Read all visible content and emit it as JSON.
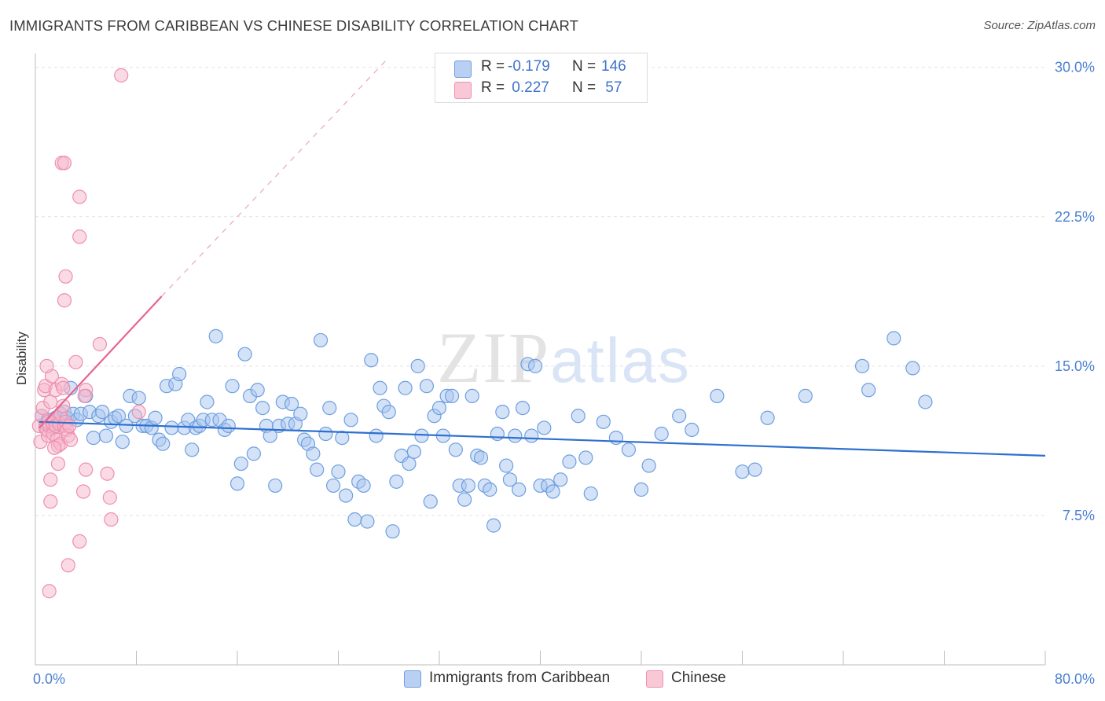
{
  "header": {
    "title": "IMMIGRANTS FROM CARIBBEAN VS CHINESE DISABILITY CORRELATION CHART",
    "source": "Source: ZipAtlas.com"
  },
  "watermark": {
    "zip": "ZIP",
    "atlas": "atlas"
  },
  "legend": {
    "rows": [
      {
        "r_label": "R = ",
        "r_value": "-0.179",
        "n_label": "N = ",
        "n_value": "146"
      },
      {
        "r_label": "R = ",
        "r_value": " 0.227",
        "n_label": "N = ",
        "n_value": " 57"
      }
    ]
  },
  "bottom_legend": {
    "series1": "Immigrants from Caribbean",
    "series2": "Chinese"
  },
  "colors": {
    "blue_fill": "#a9c6ef",
    "blue_stroke": "#6d9fe0",
    "blue_line": "#2e70cf",
    "pink_fill": "#f6b8cb",
    "pink_stroke": "#ee8fae",
    "pink_line": "#e8648d",
    "grid": "#e2e2e2",
    "tick_text": "#4a7fd0"
  },
  "chart_data": {
    "type": "scatter",
    "title": "IMMIGRANTS FROM CARIBBEAN VS CHINESE DISABILITY CORRELATION CHART",
    "xlabel": "",
    "ylabel": "Disability",
    "xlim": [
      0,
      80
    ],
    "ylim": [
      0,
      30.7
    ],
    "x_tick_labels": [
      "0.0%",
      "80.0%"
    ],
    "y_ticks": [
      7.5,
      15.0,
      22.5,
      30.0
    ],
    "y_tick_labels": [
      "7.5%",
      "15.0%",
      "22.5%",
      "30.0%"
    ],
    "grid": true,
    "legend_position": "top-center",
    "series": [
      {
        "name": "Immigrants from Caribbean",
        "R": -0.179,
        "N": 146,
        "trend": {
          "x0": 0.3,
          "y0": 12.2,
          "x1": 80,
          "y1": 10.5
        },
        "points": [
          [
            0.5,
            12.5
          ],
          [
            0.8,
            12.1
          ],
          [
            1.0,
            12.3
          ],
          [
            1.2,
            12.0
          ],
          [
            1.4,
            11.9
          ],
          [
            1.6,
            12.4
          ],
          [
            1.8,
            12.2
          ],
          [
            2.0,
            12.6
          ],
          [
            2.3,
            12.7
          ],
          [
            2.5,
            12.4
          ],
          [
            2.8,
            13.9
          ],
          [
            3.0,
            12.6
          ],
          [
            3.3,
            12.3
          ],
          [
            3.6,
            12.6
          ],
          [
            4.0,
            13.5
          ],
          [
            4.3,
            12.7
          ],
          [
            4.6,
            11.4
          ],
          [
            5.0,
            12.5
          ],
          [
            5.3,
            12.7
          ],
          [
            5.6,
            11.5
          ],
          [
            6.0,
            12.2
          ],
          [
            6.3,
            12.4
          ],
          [
            6.6,
            12.5
          ],
          [
            6.9,
            11.2
          ],
          [
            7.2,
            12.0
          ],
          [
            7.5,
            13.5
          ],
          [
            7.9,
            12.5
          ],
          [
            8.2,
            13.4
          ],
          [
            8.5,
            12.0
          ],
          [
            8.8,
            12.0
          ],
          [
            9.2,
            11.9
          ],
          [
            9.5,
            12.4
          ],
          [
            9.8,
            11.3
          ],
          [
            10.1,
            11.1
          ],
          [
            10.4,
            14.0
          ],
          [
            10.8,
            11.9
          ],
          [
            11.1,
            14.1
          ],
          [
            11.4,
            14.6
          ],
          [
            11.8,
            11.9
          ],
          [
            12.1,
            12.3
          ],
          [
            12.4,
            10.8
          ],
          [
            12.7,
            11.9
          ],
          [
            13.0,
            12.0
          ],
          [
            13.3,
            12.3
          ],
          [
            13.6,
            13.2
          ],
          [
            14.0,
            12.3
          ],
          [
            14.3,
            16.5
          ],
          [
            14.6,
            12.3
          ],
          [
            15.0,
            11.8
          ],
          [
            15.3,
            12.0
          ],
          [
            15.6,
            14.0
          ],
          [
            16.0,
            9.1
          ],
          [
            16.3,
            10.1
          ],
          [
            16.6,
            15.6
          ],
          [
            17.0,
            13.5
          ],
          [
            17.3,
            10.6
          ],
          [
            17.6,
            13.8
          ],
          [
            18.0,
            12.9
          ],
          [
            18.3,
            12.0
          ],
          [
            18.6,
            11.5
          ],
          [
            19.0,
            9.0
          ],
          [
            19.3,
            12.0
          ],
          [
            19.6,
            13.2
          ],
          [
            20.0,
            12.1
          ],
          [
            20.3,
            13.1
          ],
          [
            20.6,
            12.1
          ],
          [
            21.0,
            12.6
          ],
          [
            21.3,
            11.3
          ],
          [
            21.6,
            11.1
          ],
          [
            22.0,
            10.6
          ],
          [
            22.3,
            9.8
          ],
          [
            22.6,
            16.3
          ],
          [
            23.0,
            11.6
          ],
          [
            23.3,
            12.9
          ],
          [
            23.6,
            9.0
          ],
          [
            24.0,
            9.7
          ],
          [
            24.3,
            11.4
          ],
          [
            24.6,
            8.5
          ],
          [
            25.0,
            12.3
          ],
          [
            25.3,
            7.3
          ],
          [
            25.6,
            9.2
          ],
          [
            26.0,
            9.0
          ],
          [
            26.3,
            7.2
          ],
          [
            26.6,
            15.3
          ],
          [
            27.0,
            11.5
          ],
          [
            27.3,
            13.9
          ],
          [
            27.6,
            13.0
          ],
          [
            28.0,
            12.7
          ],
          [
            28.3,
            6.7
          ],
          [
            28.6,
            9.2
          ],
          [
            29.0,
            10.5
          ],
          [
            29.3,
            13.9
          ],
          [
            29.6,
            10.1
          ],
          [
            30.0,
            10.7
          ],
          [
            30.3,
            15.0
          ],
          [
            30.6,
            11.5
          ],
          [
            31.0,
            14.0
          ],
          [
            31.3,
            8.2
          ],
          [
            31.6,
            12.5
          ],
          [
            32.0,
            12.9
          ],
          [
            32.3,
            11.5
          ],
          [
            32.6,
            13.5
          ],
          [
            33.0,
            13.5
          ],
          [
            33.3,
            10.8
          ],
          [
            33.6,
            9.0
          ],
          [
            34.0,
            8.3
          ],
          [
            34.3,
            9.0
          ],
          [
            34.6,
            13.5
          ],
          [
            35.0,
            10.5
          ],
          [
            35.3,
            10.4
          ],
          [
            35.6,
            9.0
          ],
          [
            36.0,
            8.8
          ],
          [
            36.3,
            7.0
          ],
          [
            36.6,
            11.6
          ],
          [
            37.0,
            12.7
          ],
          [
            37.3,
            10.0
          ],
          [
            37.6,
            9.3
          ],
          [
            38.0,
            11.5
          ],
          [
            38.3,
            8.8
          ],
          [
            38.6,
            12.9
          ],
          [
            39.0,
            15.1
          ],
          [
            39.3,
            11.5
          ],
          [
            39.6,
            15.0
          ],
          [
            40.0,
            9.0
          ],
          [
            40.3,
            11.9
          ],
          [
            40.6,
            9.0
          ],
          [
            41.0,
            8.7
          ],
          [
            41.6,
            9.3
          ],
          [
            42.3,
            10.2
          ],
          [
            43.0,
            12.5
          ],
          [
            43.6,
            10.4
          ],
          [
            44.0,
            8.6
          ],
          [
            45.0,
            12.2
          ],
          [
            46.0,
            11.4
          ],
          [
            47.0,
            10.8
          ],
          [
            48.0,
            8.8
          ],
          [
            48.6,
            10.0
          ],
          [
            49.6,
            11.6
          ],
          [
            51.0,
            12.5
          ],
          [
            52.0,
            11.8
          ],
          [
            54.0,
            13.5
          ],
          [
            56.0,
            9.7
          ],
          [
            57.0,
            9.8
          ],
          [
            58.0,
            12.4
          ],
          [
            61.0,
            13.5
          ],
          [
            65.5,
            15.0
          ],
          [
            66.0,
            13.8
          ],
          [
            68.0,
            16.4
          ],
          [
            69.5,
            14.9
          ],
          [
            70.5,
            13.2
          ]
        ]
      },
      {
        "name": "Chinese",
        "R": 0.227,
        "N": 57,
        "trend": {
          "x0": 0.3,
          "y0": 11.9,
          "x1": 10.0,
          "y1": 18.5,
          "dash_x1": 28.0,
          "dash_y1": 30.5
        },
        "points": [
          [
            0.3,
            12.0
          ],
          [
            0.4,
            11.2
          ],
          [
            0.5,
            12.5
          ],
          [
            0.6,
            12.9
          ],
          [
            0.7,
            13.8
          ],
          [
            0.8,
            14.0
          ],
          [
            0.8,
            11.9
          ],
          [
            0.9,
            11.8
          ],
          [
            1.0,
            12.2
          ],
          [
            1.0,
            11.5
          ],
          [
            1.1,
            12.0
          ],
          [
            1.2,
            13.2
          ],
          [
            1.2,
            9.3
          ],
          [
            1.3,
            14.5
          ],
          [
            1.4,
            11.6
          ],
          [
            1.4,
            12.1
          ],
          [
            1.5,
            12.3
          ],
          [
            1.6,
            12.0
          ],
          [
            1.6,
            13.8
          ],
          [
            1.7,
            11.3
          ],
          [
            1.8,
            11.0
          ],
          [
            1.8,
            10.1
          ],
          [
            1.9,
            12.1
          ],
          [
            2.0,
            11.1
          ],
          [
            2.0,
            12.6
          ],
          [
            2.1,
            14.1
          ],
          [
            2.2,
            13.9
          ],
          [
            2.3,
            12.0
          ],
          [
            2.4,
            12.2
          ],
          [
            2.5,
            11.8
          ],
          [
            2.6,
            11.5
          ],
          [
            2.7,
            12.0
          ],
          [
            2.8,
            11.3
          ],
          [
            2.1,
            25.2
          ],
          [
            2.3,
            25.2
          ],
          [
            2.4,
            19.5
          ],
          [
            2.3,
            18.3
          ],
          [
            3.5,
            21.5
          ],
          [
            3.5,
            23.5
          ],
          [
            4.0,
            13.8
          ],
          [
            4.0,
            9.8
          ],
          [
            3.2,
            15.2
          ],
          [
            3.5,
            6.2
          ],
          [
            3.8,
            8.7
          ],
          [
            3.9,
            13.5
          ],
          [
            5.7,
            9.6
          ],
          [
            5.9,
            8.4
          ],
          [
            6.0,
            7.3
          ],
          [
            6.8,
            29.6
          ],
          [
            5.1,
            16.1
          ],
          [
            1.1,
            3.7
          ],
          [
            1.2,
            8.2
          ],
          [
            2.6,
            5.0
          ],
          [
            1.5,
            10.9
          ],
          [
            2.2,
            13.0
          ],
          [
            8.2,
            12.7
          ],
          [
            0.9,
            15.0
          ]
        ]
      }
    ]
  }
}
